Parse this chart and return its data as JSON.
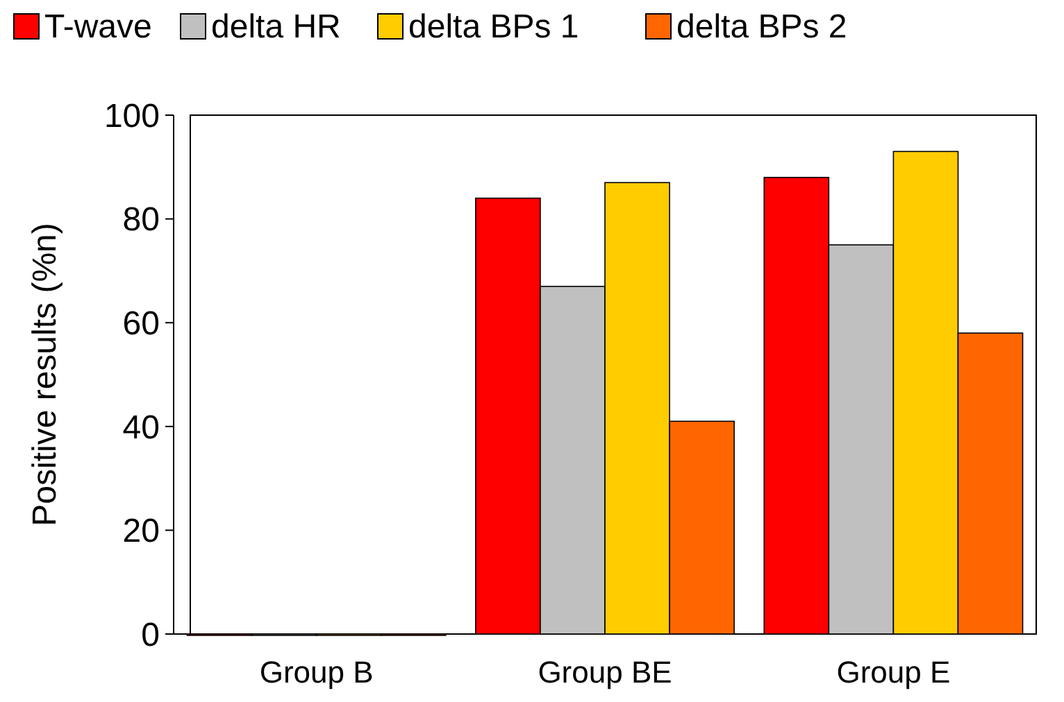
{
  "chart_data": {
    "type": "bar",
    "ylabel": "Positive results (%n)",
    "categories": [
      "Group B",
      "Group BE",
      "Group E"
    ],
    "series": [
      {
        "name": "T-wave",
        "color": "#ff0000",
        "values": [
          0,
          84,
          88
        ]
      },
      {
        "name": "delta HR",
        "color": "#c0c0c0",
        "values": [
          0,
          67,
          75
        ]
      },
      {
        "name": "delta BPs 1",
        "color": "#ffcc00",
        "values": [
          0,
          87,
          93
        ]
      },
      {
        "name": "delta BPs 2",
        "color": "#ff6600",
        "values": [
          0,
          41,
          58
        ]
      }
    ],
    "ylim": [
      0,
      100
    ],
    "yticks": [
      0,
      20,
      40,
      60,
      80,
      100
    ],
    "grid": false,
    "legend": "top"
  }
}
